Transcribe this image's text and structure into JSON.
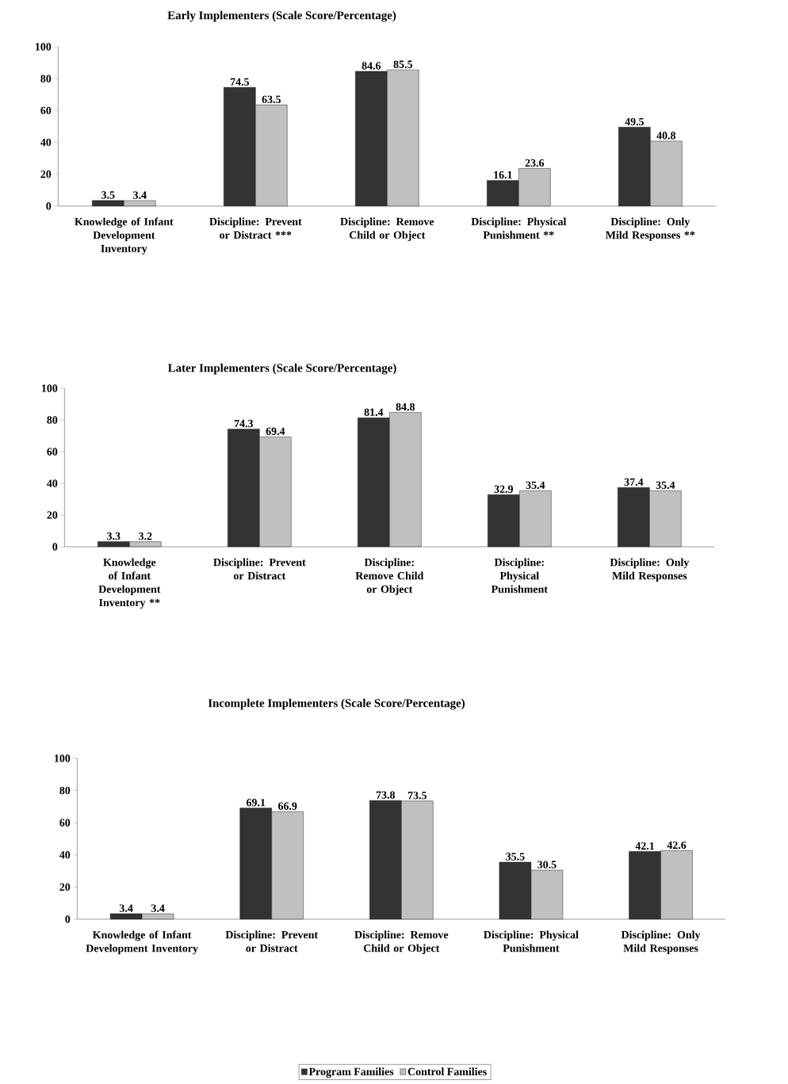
{
  "chart_data": [
    {
      "type": "bar",
      "title": "Early Implementers (Scale Score/Percentage)",
      "categories": [
        "Knowledge of Infant Development Inventory",
        "Discipline: Prevent or Distract ***",
        "Discipline: Remove Child or Object",
        "Discipline: Physical Punishment **",
        "Discipline: Only Mild Responses **"
      ],
      "series": [
        {
          "color": "#333333",
          "values": [
            3.5,
            74.5,
            84.6,
            16.1,
            49.5
          ]
        },
        {
          "color": "#c0c0c0",
          "values": [
            3.4,
            63.5,
            85.5,
            23.6,
            40.8
          ]
        }
      ],
      "ylim": [
        0,
        100
      ],
      "yticks": [
        0,
        20,
        40,
        60,
        80,
        100
      ],
      "data_labels": true
    },
    {
      "type": "bar",
      "title": "Later Implementers (Scale Score/Percentage)",
      "categories": [
        "Knowledge of Infant Development Inventory **",
        "Discipline: Prevent or Distract",
        "Discipline: Remove Child or Object",
        "Discipline: Physical Punishment",
        "Discipline: Only Mild Responses"
      ],
      "series": [
        {
          "color": "#333333",
          "values": [
            3.3,
            74.3,
            81.4,
            32.9,
            37.4
          ]
        },
        {
          "color": "#c0c0c0",
          "values": [
            3.2,
            69.4,
            84.8,
            35.4,
            35.4
          ]
        }
      ],
      "ylim": [
        0,
        100
      ],
      "yticks": [
        0,
        20,
        40,
        60,
        80,
        100
      ],
      "data_labels": true
    },
    {
      "type": "bar",
      "title": "Incomplete Implementers (Scale Score/Percentage)",
      "categories": [
        "Knowledge of Infant Development Inventory",
        "Discipline: Prevent or Distract",
        "Discipline: Remove Child or Object",
        "Discipline: Physical Punishment",
        "Discipline: Only Mild Responses"
      ],
      "series": [
        {
          "name": "Program Families",
          "color": "#333333",
          "values": [
            3.4,
            69.1,
            73.8,
            35.5,
            42.1
          ]
        },
        {
          "name": "Control Families",
          "color": "#c0c0c0",
          "values": [
            3.4,
            66.9,
            73.5,
            30.5,
            42.6
          ]
        }
      ],
      "ylim": [
        0,
        100
      ],
      "yticks": [
        0,
        20,
        40,
        60,
        80,
        100
      ],
      "data_labels": true,
      "legend": "bottom"
    }
  ]
}
